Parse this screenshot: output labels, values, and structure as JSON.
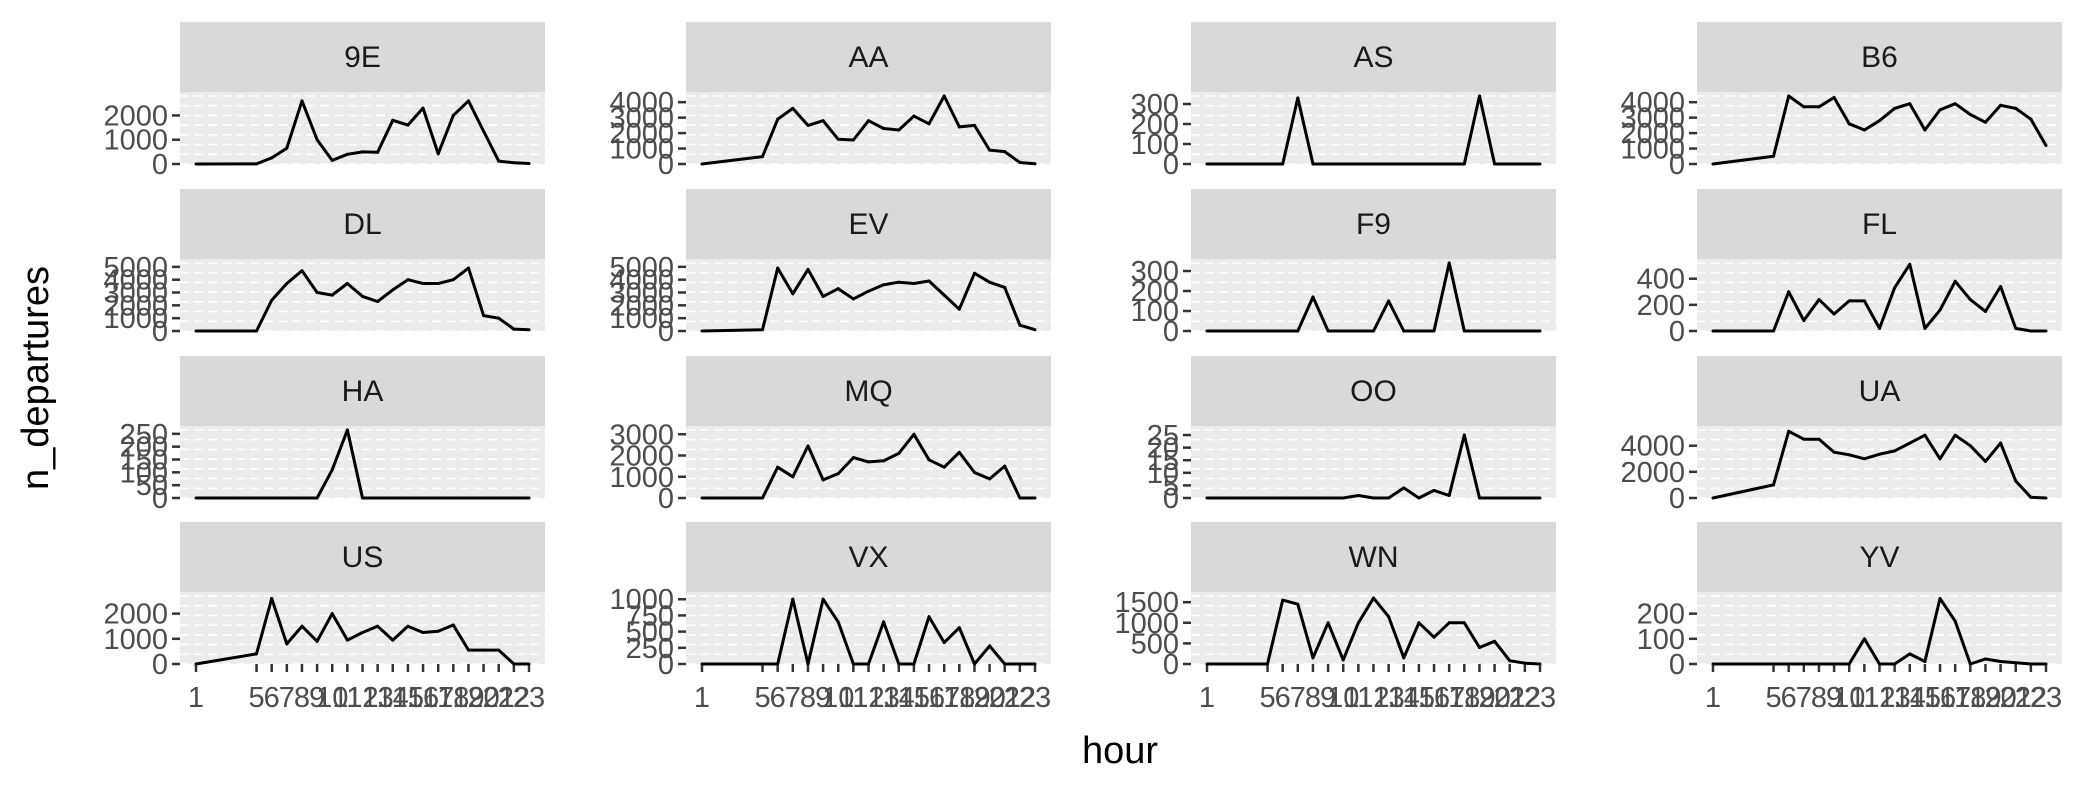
{
  "chart_data": {
    "type": "line",
    "facet_by": "carrier",
    "xlabel": "hour",
    "ylabel": "n_departures",
    "x": [
      1,
      5,
      6,
      7,
      8,
      9,
      10,
      11,
      12,
      13,
      14,
      15,
      16,
      17,
      18,
      19,
      20,
      21,
      22,
      23
    ],
    "x_tick_labels": [
      "1",
      "5",
      "6",
      "7",
      "8",
      "9",
      "10",
      "11",
      "12",
      "13",
      "14",
      "15",
      "16",
      "17",
      "18",
      "19",
      "20",
      "21",
      "22",
      "23"
    ],
    "xlim": [
      1,
      23
    ],
    "grid": true,
    "panels": [
      {
        "label": "9E",
        "ylim": [
          0,
          2800
        ],
        "yticks": [
          0,
          1000,
          2000
        ],
        "values": [
          0,
          5,
          250,
          650,
          2600,
          1000,
          150,
          400,
          500,
          480,
          1800,
          1600,
          2300,
          420,
          2000,
          2600,
          1350,
          120,
          50,
          20
        ]
      },
      {
        "label": "AA",
        "ylim": [
          0,
          4400
        ],
        "yticks": [
          0,
          1000,
          2000,
          3000,
          4000
        ],
        "values": [
          0,
          480,
          2900,
          3600,
          2500,
          2800,
          1600,
          1550,
          2800,
          2300,
          2200,
          3100,
          2600,
          4400,
          2400,
          2500,
          900,
          800,
          100,
          20
        ]
      },
      {
        "label": "AS",
        "ylim": [
          0,
          340
        ],
        "yticks": [
          0,
          100,
          200,
          300
        ],
        "values": [
          0,
          0,
          0,
          330,
          0,
          0,
          0,
          0,
          0,
          0,
          0,
          0,
          0,
          0,
          0,
          340,
          0,
          0,
          0,
          0
        ]
      },
      {
        "label": "B6",
        "ylim": [
          0,
          4400
        ],
        "yticks": [
          0,
          1000,
          2000,
          3000,
          4000
        ],
        "values": [
          0,
          500,
          4400,
          3700,
          3700,
          4300,
          2600,
          2200,
          2800,
          3600,
          3900,
          2200,
          3500,
          3900,
          3200,
          2700,
          3800,
          3600,
          2900,
          1200
        ]
      },
      {
        "label": "DL",
        "ylim": [
          0,
          5300
        ],
        "yticks": [
          0,
          1000,
          2000,
          3000,
          4000,
          5000
        ],
        "values": [
          0,
          0,
          2400,
          3700,
          4700,
          3000,
          2800,
          3700,
          2700,
          2300,
          3200,
          4000,
          3700,
          3700,
          4000,
          4900,
          1200,
          1000,
          150,
          100
        ]
      },
      {
        "label": "EV",
        "ylim": [
          0,
          5300
        ],
        "yticks": [
          0,
          1000,
          2000,
          3000,
          4000,
          5000
        ],
        "values": [
          0,
          100,
          4900,
          2900,
          4800,
          2700,
          3300,
          2500,
          3100,
          3600,
          3800,
          3700,
          3900,
          2800,
          1700,
          4500,
          3800,
          3400,
          450,
          100
        ]
      },
      {
        "label": "F9",
        "ylim": [
          0,
          340
        ],
        "yticks": [
          0,
          100,
          200,
          300
        ],
        "values": [
          0,
          0,
          0,
          0,
          170,
          0,
          0,
          0,
          0,
          150,
          0,
          0,
          0,
          340,
          0,
          0,
          0,
          0,
          0,
          0
        ]
      },
      {
        "label": "FL",
        "ylim": [
          0,
          520
        ],
        "yticks": [
          0,
          200,
          400
        ],
        "values": [
          0,
          0,
          300,
          80,
          240,
          130,
          230,
          230,
          20,
          330,
          510,
          20,
          160,
          380,
          240,
          150,
          340,
          20,
          0,
          0
        ]
      },
      {
        "label": "HA",
        "ylim": [
          0,
          265
        ],
        "yticks": [
          0,
          50,
          100,
          150,
          200,
          250
        ],
        "values": [
          0,
          0,
          0,
          0,
          0,
          0,
          110,
          265,
          0,
          0,
          0,
          0,
          0,
          0,
          0,
          0,
          0,
          0,
          0,
          0
        ]
      },
      {
        "label": "MQ",
        "ylim": [
          0,
          3200
        ],
        "yticks": [
          0,
          1000,
          2000,
          3000
        ],
        "values": [
          0,
          0,
          1450,
          1000,
          2450,
          850,
          1150,
          1900,
          1700,
          1750,
          2100,
          3000,
          1800,
          1450,
          2150,
          1200,
          900,
          1500,
          0,
          0
        ]
      },
      {
        "label": "OO",
        "ylim": [
          0,
          27
        ],
        "yticks": [
          0,
          5,
          10,
          15,
          20,
          25
        ],
        "values": [
          0,
          0,
          0,
          0,
          0,
          0,
          0,
          1,
          0,
          0,
          4,
          0,
          3,
          1,
          25,
          0,
          0,
          0,
          0,
          0
        ]
      },
      {
        "label": "UA",
        "ylim": [
          0,
          5200
        ],
        "yticks": [
          0,
          2000,
          4000
        ],
        "values": [
          0,
          1000,
          5100,
          4500,
          4500,
          3500,
          3300,
          3000,
          3350,
          3600,
          4200,
          4800,
          3000,
          4800,
          4000,
          2800,
          4200,
          1300,
          50,
          0
        ]
      },
      {
        "label": "US",
        "ylim": [
          0,
          2700
        ],
        "yticks": [
          0,
          1000,
          2000
        ],
        "values": [
          0,
          400,
          2600,
          800,
          1500,
          900,
          2000,
          950,
          1250,
          1500,
          950,
          1500,
          1250,
          1300,
          1550,
          550,
          550,
          550,
          0,
          0
        ]
      },
      {
        "label": "VX",
        "ylim": [
          0,
          1050
        ],
        "yticks": [
          0,
          250,
          500,
          750,
          1000
        ],
        "values": [
          0,
          0,
          0,
          1000,
          0,
          1000,
          650,
          0,
          0,
          650,
          0,
          0,
          730,
          330,
          560,
          0,
          280,
          0,
          0,
          0
        ]
      },
      {
        "label": "WN",
        "ylim": [
          0,
          1650
        ],
        "yticks": [
          0,
          500,
          1000,
          1500
        ],
        "values": [
          0,
          0,
          1550,
          1450,
          150,
          1000,
          100,
          1000,
          1600,
          1150,
          150,
          1000,
          650,
          1000,
          1000,
          400,
          550,
          80,
          20,
          0
        ]
      },
      {
        "label": "YV",
        "ylim": [
          0,
          270
        ],
        "yticks": [
          0,
          100,
          200
        ],
        "values": [
          0,
          0,
          0,
          0,
          0,
          0,
          0,
          100,
          0,
          0,
          40,
          10,
          260,
          170,
          0,
          20,
          10,
          5,
          0,
          0
        ]
      }
    ]
  },
  "colors": {
    "strip_bg": "#d9d9d9",
    "panel_bg": "#ebebeb",
    "grid_major": "#ffffff",
    "line": "#000000",
    "tick_text": "#4d4d4d"
  }
}
